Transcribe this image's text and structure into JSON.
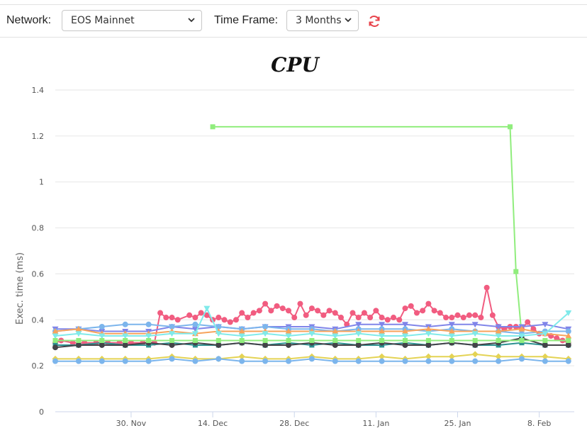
{
  "toolbar": {
    "network_label": "Network:",
    "network_value": "EOS Mainnet",
    "timeframe_label": "Time Frame:",
    "timeframe_value": "3 Months",
    "refresh_icon": "refresh-icon",
    "accent_color": "#e8424a"
  },
  "chart_data": {
    "type": "line",
    "title": "CPU",
    "xlabel": "",
    "ylabel": "Exec. time (ms)",
    "ylim": [
      0,
      1.4
    ],
    "yticks": [
      "0",
      "0.2",
      "0.4",
      "0.6",
      "0.8",
      "1",
      "1.2",
      "1.4"
    ],
    "yticks_values": [
      0,
      0.2,
      0.4,
      0.6,
      0.8,
      1.0,
      1.2,
      1.4
    ],
    "xlim": [
      "2021-11-17",
      "2022-02-14"
    ],
    "xticks": [
      "30. Nov",
      "14. Dec",
      "28. Dec",
      "11. Jan",
      "25. Jan",
      "8. Feb"
    ],
    "xticks_dates": [
      "2021-11-30",
      "2021-12-14",
      "2021-12-28",
      "2022-01-11",
      "2022-01-25",
      "2022-02-08"
    ],
    "grid": true,
    "legend": "none",
    "series": [
      {
        "color": "#f15c80",
        "marker": "circle",
        "dates": [
          "2021-11-17",
          "2021-11-18",
          "2021-11-20",
          "2021-11-22",
          "2021-11-24",
          "2021-11-26",
          "2021-11-28",
          "2021-11-30",
          "2021-12-02",
          "2021-12-04",
          "2021-12-05",
          "2021-12-06",
          "2021-12-07",
          "2021-12-08",
          "2021-12-10",
          "2021-12-11",
          "2021-12-12",
          "2021-12-13",
          "2021-12-14",
          "2021-12-15",
          "2021-12-16",
          "2021-12-17",
          "2021-12-18",
          "2021-12-19",
          "2021-12-20",
          "2021-12-21",
          "2021-12-22",
          "2021-12-23",
          "2021-12-24",
          "2021-12-25",
          "2021-12-26",
          "2021-12-27",
          "2021-12-28",
          "2021-12-29",
          "2021-12-30",
          "2021-12-31",
          "2022-01-01",
          "2022-01-02",
          "2022-01-03",
          "2022-01-04",
          "2022-01-05",
          "2022-01-06",
          "2022-01-07",
          "2022-01-08",
          "2022-01-09",
          "2022-01-10",
          "2022-01-11",
          "2022-01-12",
          "2022-01-13",
          "2022-01-14",
          "2022-01-15",
          "2022-01-16",
          "2022-01-17",
          "2022-01-18",
          "2022-01-19",
          "2022-01-20",
          "2022-01-21",
          "2022-01-22",
          "2022-01-23",
          "2022-01-24",
          "2022-01-25",
          "2022-01-26",
          "2022-01-27",
          "2022-01-28",
          "2022-01-29",
          "2022-01-30",
          "2022-01-31",
          "2022-02-01",
          "2022-02-02",
          "2022-02-03",
          "2022-02-04",
          "2022-02-05",
          "2022-02-06",
          "2022-02-07",
          "2022-02-08",
          "2022-02-09",
          "2022-02-10",
          "2022-02-11",
          "2022-02-12",
          "2022-02-13"
        ],
        "values": [
          0.3,
          0.31,
          0.3,
          0.3,
          0.3,
          0.3,
          0.3,
          0.3,
          0.3,
          0.3,
          0.43,
          0.41,
          0.41,
          0.4,
          0.42,
          0.41,
          0.43,
          0.42,
          0.4,
          0.41,
          0.4,
          0.39,
          0.4,
          0.43,
          0.41,
          0.43,
          0.44,
          0.47,
          0.44,
          0.46,
          0.45,
          0.44,
          0.41,
          0.47,
          0.42,
          0.45,
          0.44,
          0.42,
          0.44,
          0.43,
          0.41,
          0.38,
          0.43,
          0.41,
          0.43,
          0.41,
          0.44,
          0.41,
          0.4,
          0.41,
          0.4,
          0.45,
          0.46,
          0.43,
          0.44,
          0.47,
          0.44,
          0.43,
          0.41,
          0.41,
          0.42,
          0.41,
          0.42,
          0.42,
          0.41,
          0.54,
          0.42,
          0.37,
          0.36,
          0.37,
          0.37,
          0.36,
          0.39,
          0.36,
          0.34,
          0.34,
          0.33,
          0.32,
          0.31,
          0.3
        ]
      },
      {
        "color": "#90ed7d",
        "marker": "square",
        "dates": [
          "2021-12-14",
          "2022-02-03",
          "2022-02-04",
          "2022-02-05"
        ],
        "values": [
          1.24,
          1.24,
          0.61,
          0.33
        ]
      },
      {
        "color": "#8085e9",
        "marker": "triangle-down",
        "dates": [
          "2021-11-17",
          "2021-11-21",
          "2021-11-25",
          "2021-11-29",
          "2021-12-03",
          "2021-12-07",
          "2021-12-11",
          "2021-12-15",
          "2021-12-19",
          "2021-12-23",
          "2021-12-27",
          "2021-12-31",
          "2022-01-04",
          "2022-01-08",
          "2022-01-12",
          "2022-01-16",
          "2022-01-20",
          "2022-01-24",
          "2022-01-28",
          "2022-02-01",
          "2022-02-05",
          "2022-02-09",
          "2022-02-13"
        ],
        "values": [
          0.36,
          0.36,
          0.35,
          0.35,
          0.35,
          0.37,
          0.36,
          0.37,
          0.36,
          0.37,
          0.37,
          0.37,
          0.36,
          0.38,
          0.38,
          0.38,
          0.37,
          0.38,
          0.38,
          0.37,
          0.37,
          0.38,
          0.36
        ]
      },
      {
        "color": "#7cb5ec",
        "marker": "circle",
        "dates": [
          "2021-11-17",
          "2021-11-21",
          "2021-11-25",
          "2021-11-29",
          "2021-12-03",
          "2021-12-07",
          "2021-12-11",
          "2021-12-15",
          "2021-12-19",
          "2021-12-23",
          "2021-12-27",
          "2021-12-31",
          "2022-01-04",
          "2022-01-08",
          "2022-01-12",
          "2022-01-16",
          "2022-01-20",
          "2022-01-24",
          "2022-01-28",
          "2022-02-01",
          "2022-02-05",
          "2022-02-09",
          "2022-02-13"
        ],
        "values": [
          0.35,
          0.36,
          0.37,
          0.38,
          0.38,
          0.37,
          0.38,
          0.37,
          0.36,
          0.37,
          0.36,
          0.36,
          0.35,
          0.36,
          0.36,
          0.36,
          0.35,
          0.36,
          0.35,
          0.35,
          0.34,
          0.35,
          0.35
        ]
      },
      {
        "color": "#f7a35c",
        "marker": "triangle",
        "dates": [
          "2021-11-17",
          "2021-11-21",
          "2021-11-25",
          "2021-11-29",
          "2021-12-03",
          "2021-12-07",
          "2021-12-11",
          "2021-12-15",
          "2021-12-19",
          "2021-12-23",
          "2021-12-27",
          "2021-12-31",
          "2022-01-04",
          "2022-01-08",
          "2022-01-12",
          "2022-01-16",
          "2022-01-20",
          "2022-01-24",
          "2022-01-28",
          "2022-02-01",
          "2022-02-05",
          "2022-02-09",
          "2022-02-13"
        ],
        "values": [
          0.35,
          0.36,
          0.34,
          0.34,
          0.34,
          0.35,
          0.34,
          0.35,
          0.35,
          0.35,
          0.35,
          0.35,
          0.35,
          0.35,
          0.35,
          0.35,
          0.36,
          0.35,
          0.35,
          0.35,
          0.36,
          0.34,
          0.33
        ]
      },
      {
        "color": "#2b908f",
        "marker": "square",
        "dates": [
          "2021-11-17",
          "2021-11-21",
          "2021-11-25",
          "2021-11-29",
          "2021-12-03",
          "2021-12-07",
          "2021-12-11",
          "2021-12-15",
          "2021-12-19",
          "2021-12-23",
          "2021-12-27",
          "2021-12-31",
          "2022-01-04",
          "2022-01-08",
          "2022-01-12",
          "2022-01-16",
          "2022-01-20",
          "2022-01-24",
          "2022-01-28",
          "2022-02-01",
          "2022-02-05",
          "2022-02-09",
          "2022-02-13"
        ],
        "values": [
          0.29,
          0.29,
          0.3,
          0.29,
          0.29,
          0.3,
          0.29,
          0.29,
          0.3,
          0.29,
          0.3,
          0.29,
          0.3,
          0.29,
          0.29,
          0.3,
          0.29,
          0.3,
          0.29,
          0.29,
          0.3,
          0.29,
          0.29
        ]
      },
      {
        "color": "#434348",
        "marker": "circle",
        "dates": [
          "2021-11-17",
          "2021-11-21",
          "2021-11-25",
          "2021-11-29",
          "2021-12-03",
          "2021-12-07",
          "2021-12-11",
          "2021-12-15",
          "2021-12-19",
          "2021-12-23",
          "2021-12-27",
          "2021-12-31",
          "2022-01-04",
          "2022-01-08",
          "2022-01-12",
          "2022-01-16",
          "2022-01-20",
          "2022-01-24",
          "2022-01-28",
          "2022-02-01",
          "2022-02-05",
          "2022-02-09",
          "2022-02-13"
        ],
        "values": [
          0.28,
          0.29,
          0.29,
          0.29,
          0.3,
          0.29,
          0.3,
          0.29,
          0.3,
          0.29,
          0.29,
          0.3,
          0.29,
          0.29,
          0.3,
          0.29,
          0.29,
          0.3,
          0.29,
          0.3,
          0.32,
          0.29,
          0.29
        ]
      },
      {
        "color": "#e4d354",
        "marker": "diamond",
        "dates": [
          "2021-11-17",
          "2021-11-21",
          "2021-11-25",
          "2021-11-29",
          "2021-12-03",
          "2021-12-07",
          "2021-12-11",
          "2021-12-15",
          "2021-12-19",
          "2021-12-23",
          "2021-12-27",
          "2021-12-31",
          "2022-01-04",
          "2022-01-08",
          "2022-01-12",
          "2022-01-16",
          "2022-01-20",
          "2022-01-24",
          "2022-01-28",
          "2022-02-01",
          "2022-02-05",
          "2022-02-09",
          "2022-02-13"
        ],
        "values": [
          0.23,
          0.23,
          0.23,
          0.23,
          0.23,
          0.24,
          0.23,
          0.23,
          0.24,
          0.23,
          0.23,
          0.24,
          0.23,
          0.23,
          0.24,
          0.23,
          0.24,
          0.24,
          0.25,
          0.24,
          0.24,
          0.24,
          0.23
        ]
      },
      {
        "color": "#7cb5ec",
        "marker": "circle",
        "dates": [
          "2021-11-17",
          "2021-11-21",
          "2021-11-25",
          "2021-11-29",
          "2021-12-03",
          "2021-12-07",
          "2021-12-11",
          "2021-12-15",
          "2021-12-19",
          "2021-12-23",
          "2021-12-27",
          "2021-12-31",
          "2022-01-04",
          "2022-01-08",
          "2022-01-12",
          "2022-01-16",
          "2022-01-20",
          "2022-01-24",
          "2022-01-28",
          "2022-02-01",
          "2022-02-05",
          "2022-02-09",
          "2022-02-13"
        ],
        "values": [
          0.22,
          0.22,
          0.22,
          0.22,
          0.22,
          0.23,
          0.22,
          0.23,
          0.22,
          0.22,
          0.22,
          0.23,
          0.22,
          0.22,
          0.22,
          0.22,
          0.22,
          0.22,
          0.22,
          0.22,
          0.23,
          0.22,
          0.22
        ]
      },
      {
        "color": "#80eaea",
        "marker": "triangle-down",
        "dates": [
          "2021-11-17",
          "2021-11-21",
          "2021-11-25",
          "2021-11-29",
          "2021-12-03",
          "2021-12-07",
          "2021-12-11",
          "2021-12-13",
          "2021-12-15",
          "2021-12-19",
          "2021-12-23",
          "2021-12-27",
          "2021-12-31",
          "2022-01-04",
          "2022-01-08",
          "2022-01-12",
          "2022-01-16",
          "2022-01-20",
          "2022-01-24",
          "2022-01-28",
          "2022-02-01",
          "2022-02-05",
          "2022-02-09",
          "2022-02-13"
        ],
        "values": [
          0.33,
          0.34,
          0.33,
          0.33,
          0.33,
          0.34,
          0.34,
          0.45,
          0.34,
          0.33,
          0.34,
          0.33,
          0.34,
          0.33,
          0.34,
          0.33,
          0.33,
          0.34,
          0.33,
          0.34,
          0.33,
          0.33,
          0.34,
          0.43
        ]
      },
      {
        "color": "#90ed7d",
        "marker": "square",
        "dates": [
          "2021-11-17",
          "2021-11-21",
          "2021-11-25",
          "2021-11-29",
          "2021-12-03",
          "2021-12-07",
          "2021-12-11",
          "2021-12-15",
          "2021-12-19",
          "2021-12-23",
          "2021-12-27",
          "2021-12-31",
          "2022-01-04",
          "2022-01-08",
          "2022-01-12",
          "2022-01-16",
          "2022-01-20",
          "2022-01-24",
          "2022-01-28",
          "2022-02-01",
          "2022-02-05",
          "2022-02-09",
          "2022-02-13"
        ],
        "values": [
          0.31,
          0.31,
          0.31,
          0.31,
          0.31,
          0.31,
          0.31,
          0.31,
          0.31,
          0.31,
          0.31,
          0.31,
          0.31,
          0.31,
          0.31,
          0.31,
          0.31,
          0.31,
          0.31,
          0.31,
          0.31,
          0.31,
          0.31
        ]
      }
    ]
  }
}
